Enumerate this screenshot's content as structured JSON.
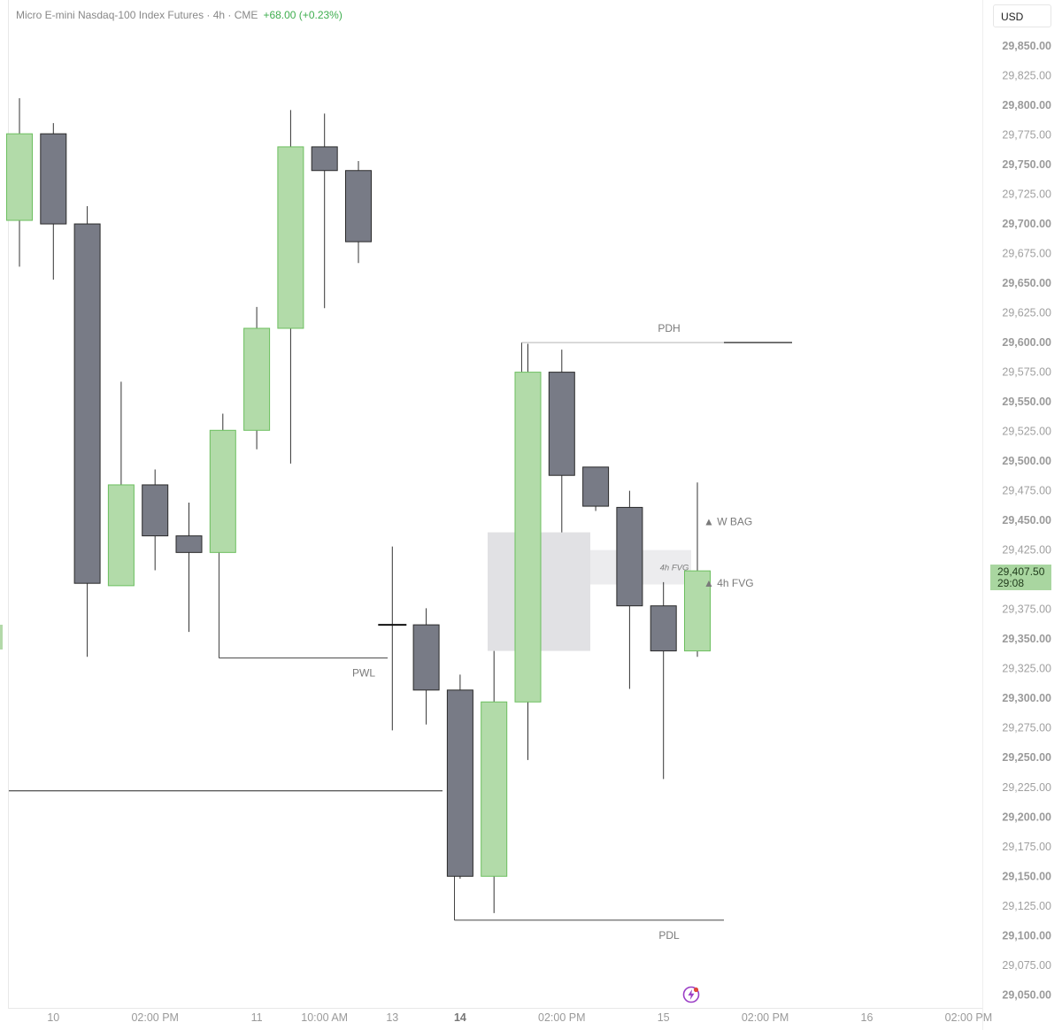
{
  "header": {
    "title": "Micro E-mini Nasdaq-100 Index Futures · 4h · CME",
    "change": "+68.00 (+0.23%)"
  },
  "currency_button": "USD",
  "current_price": {
    "price": "29,407.50",
    "countdown": "29:08"
  },
  "colors": {
    "bull_fill": "#b2dba9",
    "bull_border": "#6cbf5f",
    "bear_fill": "#787b86",
    "bear_border": "#2a2a2a",
    "wick": "#333333",
    "fvg_zone": "#e1e1e4",
    "change_text": "#3fae4f",
    "price_badge": "#a9d6a0"
  },
  "icons": [
    "lightning-bolt-icon"
  ],
  "chart_data": {
    "type": "candlestick",
    "title": "Micro E-mini Nasdaq-100 Index Futures · 4h · CME",
    "ylim": [
      29037,
      29875
    ],
    "y_ticks": [
      {
        "value": 29850,
        "label": "29,850.00",
        "bold": true
      },
      {
        "value": 29825,
        "label": "29,825.00",
        "bold": false
      },
      {
        "value": 29800,
        "label": "29,800.00",
        "bold": true
      },
      {
        "value": 29775,
        "label": "29,775.00",
        "bold": false
      },
      {
        "value": 29750,
        "label": "29,750.00",
        "bold": true
      },
      {
        "value": 29725,
        "label": "29,725.00",
        "bold": false
      },
      {
        "value": 29700,
        "label": "29,700.00",
        "bold": true
      },
      {
        "value": 29675,
        "label": "29,675.00",
        "bold": false
      },
      {
        "value": 29650,
        "label": "29,650.00",
        "bold": true
      },
      {
        "value": 29625,
        "label": "29,625.00",
        "bold": false
      },
      {
        "value": 29600,
        "label": "29,600.00",
        "bold": true
      },
      {
        "value": 29575,
        "label": "29,575.00",
        "bold": false
      },
      {
        "value": 29550,
        "label": "29,550.00",
        "bold": true
      },
      {
        "value": 29525,
        "label": "29,525.00",
        "bold": false
      },
      {
        "value": 29500,
        "label": "29,500.00",
        "bold": true
      },
      {
        "value": 29475,
        "label": "29,475.00",
        "bold": false
      },
      {
        "value": 29450,
        "label": "29,450.00",
        "bold": true
      },
      {
        "value": 29425,
        "label": "29,425.00",
        "bold": false
      },
      {
        "value": 29375,
        "label": "29,375.00",
        "bold": false
      },
      {
        "value": 29350,
        "label": "29,350.00",
        "bold": true
      },
      {
        "value": 29325,
        "label": "29,325.00",
        "bold": false
      },
      {
        "value": 29300,
        "label": "29,300.00",
        "bold": true
      },
      {
        "value": 29275,
        "label": "29,275.00",
        "bold": false
      },
      {
        "value": 29250,
        "label": "29,250.00",
        "bold": true
      },
      {
        "value": 29225,
        "label": "29,225.00",
        "bold": false
      },
      {
        "value": 29200,
        "label": "29,200.00",
        "bold": true
      },
      {
        "value": 29175,
        "label": "29,175.00",
        "bold": false
      },
      {
        "value": 29150,
        "label": "29,150.00",
        "bold": true
      },
      {
        "value": 29125,
        "label": "29,125.00",
        "bold": false
      },
      {
        "value": 29100,
        "label": "29,100.00",
        "bold": true
      },
      {
        "value": 29075,
        "label": "29,075.00",
        "bold": false
      },
      {
        "value": 29050,
        "label": "29,050.00",
        "bold": true
      }
    ],
    "x_labels": [
      {
        "index": 1,
        "label": "10",
        "bold": false
      },
      {
        "index": 4,
        "label": "02:00 PM",
        "bold": false
      },
      {
        "index": 7,
        "label": "11",
        "bold": false
      },
      {
        "index": 9,
        "label": "10:00 AM",
        "bold": false
      },
      {
        "index": 11,
        "label": "13",
        "bold": false
      },
      {
        "index": 13,
        "label": "14",
        "bold": true
      },
      {
        "index": 16,
        "label": "02:00 PM",
        "bold": false
      },
      {
        "index": 19,
        "label": "15",
        "bold": false
      },
      {
        "index": 22,
        "label": "02:00 PM",
        "bold": false
      },
      {
        "index": 25,
        "label": "16",
        "bold": false
      },
      {
        "index": 28,
        "label": "02:00 PM",
        "bold": false
      }
    ],
    "candles": [
      {
        "o": 29703,
        "h": 29806,
        "l": 29664,
        "c": 29776
      },
      {
        "o": 29776,
        "h": 29785,
        "l": 29653,
        "c": 29700
      },
      {
        "o": 29700,
        "h": 29715,
        "l": 29335,
        "c": 29397
      },
      {
        "o": 29395,
        "h": 29567,
        "l": 29395,
        "c": 29480
      },
      {
        "o": 29480,
        "h": 29493,
        "l": 29408,
        "c": 29437
      },
      {
        "o": 29437,
        "h": 29465,
        "l": 29356,
        "c": 29423
      },
      {
        "o": 29423,
        "h": 29540,
        "l": 29423,
        "c": 29526
      },
      {
        "o": 29526,
        "h": 29630,
        "l": 29510,
        "c": 29612
      },
      {
        "o": 29612,
        "h": 29796,
        "l": 29498,
        "c": 29765
      },
      {
        "o": 29765,
        "h": 29793,
        "l": 29629,
        "c": 29745
      },
      {
        "o": 29745,
        "h": 29753,
        "l": 29667,
        "c": 29685
      },
      {
        "o": 29362,
        "h": 29428,
        "l": 29273,
        "c": 29362
      },
      {
        "o": 29362,
        "h": 29376,
        "l": 29278,
        "c": 29307
      },
      {
        "o": 29307,
        "h": 29320,
        "l": 29148,
        "c": 29150
      },
      {
        "o": 29150,
        "h": 29340,
        "l": 29119,
        "c": 29297
      },
      {
        "o": 29297,
        "h": 29599,
        "l": 29248,
        "c": 29575
      },
      {
        "o": 29575,
        "h": 29594,
        "l": 29440,
        "c": 29488
      },
      {
        "o": 29495,
        "h": 29495,
        "l": 29458,
        "c": 29462
      },
      {
        "o": 29461,
        "h": 29475,
        "l": 29308,
        "c": 29378
      },
      {
        "o": 29378,
        "h": 29398,
        "l": 29232,
        "c": 29340
      },
      {
        "o": 29340,
        "h": 29482,
        "l": 29335,
        "c": 29407.5
      }
    ],
    "levels": [
      {
        "name": "PDH",
        "price": 29600
      },
      {
        "name": "PWL",
        "price": 29334
      },
      {
        "name": "PDL",
        "price": 29113
      }
    ],
    "annotations": [
      "▲ W BAG",
      "▲ 4h FVG",
      "4h FVG"
    ],
    "zones": [
      {
        "name": "fvg-zone-large",
        "top": 29440,
        "bottom": 29340
      },
      {
        "name": "fvg-zone-small",
        "top": 29425,
        "bottom": 29396
      }
    ],
    "grid": false
  }
}
